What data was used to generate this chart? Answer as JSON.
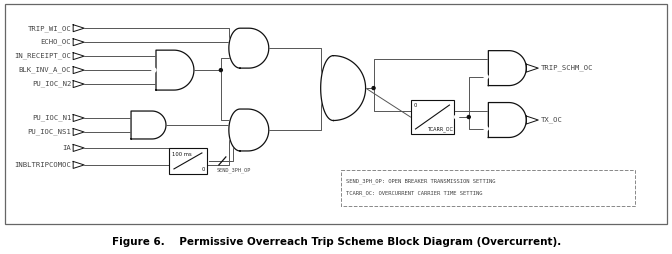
{
  "title": "Figure 6.    Permissive Overreach Trip Scheme Block Diagram (Overcurrent).",
  "title_fontsize": 7.5,
  "bg_color": "#ffffff",
  "border_color": "#666666",
  "line_color": "#555555",
  "gate_color": "#111111",
  "text_color": "#444444",
  "label_fontsize": 5.2,
  "ann_fontsize": 4.2,
  "input_labels_top": [
    "TRIP_WI_OC",
    "ECHO_OC",
    "IN_RECEIPT_OC",
    "BLK_INV_A_OC",
    "PU_IOC_N2"
  ],
  "input_labels_bottom": [
    "PU_IOC_N1",
    "PU_IOC_NS1",
    "IA",
    "INBLTRIPCOMOC"
  ],
  "output_labels": [
    "TRIP_SCHM_OC",
    "TX_OC"
  ],
  "legend_lines": [
    "SEND_3PH_OP: OPEN BREAKER TRANSMISSION SETTING",
    "TCARR_OC: OVERCURRENT CARRIER TIME SETTING"
  ],
  "timer_top_label": "100 ms",
  "timer_bot_label": "0",
  "timer2_top_label": "0",
  "timer2_bot_label": "TCARR_OC",
  "send_label": "SEND_3PH_OP"
}
